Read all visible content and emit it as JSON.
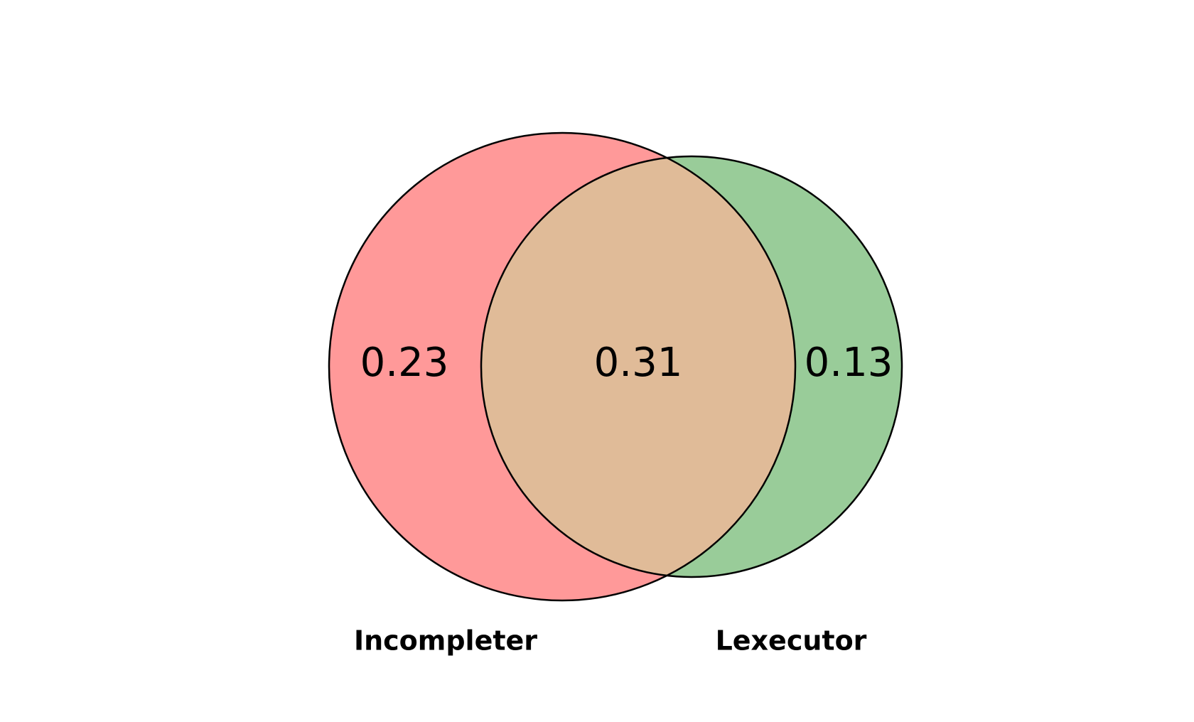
{
  "diagram": {
    "type": "venn",
    "sets": [
      {
        "name": "Incompleter",
        "color": "#ff9999"
      },
      {
        "name": "Lexecutor",
        "color": "#99cc99"
      }
    ],
    "overlap_color": "#e0bb98",
    "outline_color": "#000000",
    "regions": {
      "only_a": "0.23",
      "intersection": "0.31",
      "only_b": "0.13"
    }
  }
}
